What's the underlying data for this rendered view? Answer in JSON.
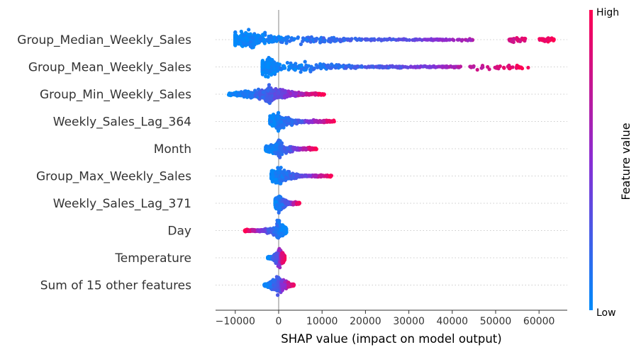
{
  "chart_data": {
    "type": "scatter",
    "subtype": "shap-beeswarm",
    "xlabel": "SHAP value (impact on model output)",
    "xlim": [
      -15000,
      67000
    ],
    "xticks": [
      -10000,
      0,
      10000,
      20000,
      30000,
      40000,
      50000,
      60000
    ],
    "xtick_labels": [
      "−10000",
      "0",
      "10000",
      "20000",
      "30000",
      "40000",
      "50000",
      "60000"
    ],
    "zero_line": true,
    "colorbar": {
      "title": "Feature value",
      "high_label": "High",
      "low_label": "Low",
      "high_color": "#ff0052",
      "mid_color": "#8a2dd4",
      "low_color": "#008bfb"
    },
    "features": [
      {
        "name": "Group_Median_Weekly_Sales",
        "min": -10000,
        "max": 63500,
        "dense_min": -10000,
        "dense_max": 45000,
        "low_side": "left",
        "bulk": [
          -10000,
          -4000
        ],
        "outliers": [
          [
            53000,
            57000
          ],
          [
            60000,
            63500
          ]
        ]
      },
      {
        "name": "Group_Mean_Weekly_Sales",
        "min": -3700,
        "max": 57500,
        "dense_min": -3700,
        "dense_max": 42000,
        "low_side": "left",
        "bulk": [
          -3700,
          -500
        ],
        "outliers": [
          [
            44000,
            57500
          ]
        ]
      },
      {
        "name": "Group_Min_Weekly_Sales",
        "min": -11500,
        "max": 10500,
        "dense_min": -11500,
        "dense_max": 10500,
        "low_side": "left",
        "bulk": [
          -3500,
          -1000
        ],
        "outliers": []
      },
      {
        "name": "Weekly_Sales_Lag_364",
        "min": -2000,
        "max": 12800,
        "dense_min": -2000,
        "dense_max": 12800,
        "low_side": "left",
        "bulk": [
          -800,
          500
        ],
        "outliers": []
      },
      {
        "name": "Month",
        "min": -3000,
        "max": 8700,
        "dense_min": -3000,
        "dense_max": 8700,
        "low_side": "left",
        "bulk": [
          -500,
          600
        ],
        "outliers": []
      },
      {
        "name": "Group_Max_Weekly_Sales",
        "min": -1700,
        "max": 12200,
        "dense_min": -1700,
        "dense_max": 12200,
        "low_side": "left",
        "bulk": [
          -500,
          800
        ],
        "outliers": []
      },
      {
        "name": "Weekly_Sales_Lag_371",
        "min": -800,
        "max": 4800,
        "dense_min": -800,
        "dense_max": 4800,
        "low_side": "left",
        "bulk": [
          -300,
          800
        ],
        "outliers": []
      },
      {
        "name": "Day",
        "min": -7800,
        "max": 1800,
        "dense_min": -7800,
        "dense_max": 1800,
        "low_side": "right",
        "bulk": [
          -600,
          400
        ],
        "outliers": []
      },
      {
        "name": "Temperature",
        "min": -2500,
        "max": 1400,
        "dense_min": -2500,
        "dense_max": 1400,
        "low_side": "left",
        "bulk": [
          -400,
          700
        ],
        "outliers": []
      },
      {
        "name": "Sum of 15 other features",
        "min": -3300,
        "max": 3500,
        "dense_min": -3300,
        "dense_max": 3500,
        "low_side": "left",
        "bulk": [
          -700,
          700
        ],
        "outliers": []
      }
    ]
  }
}
